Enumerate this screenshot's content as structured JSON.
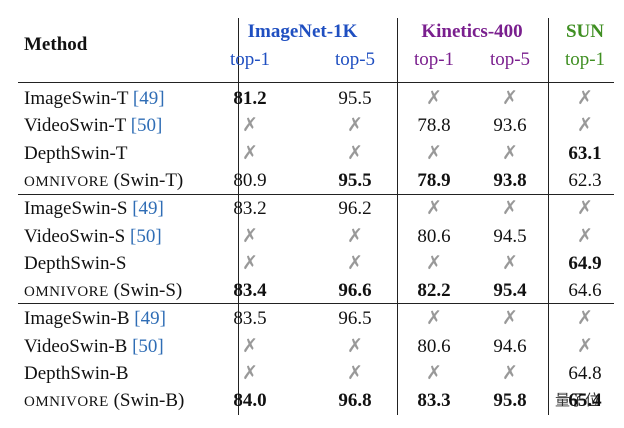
{
  "header": {
    "method": "Method",
    "groups": [
      {
        "name": "ImageNet-1K",
        "color": "#1f4fc1",
        "subcolumns": [
          "top-1",
          "top-5"
        ]
      },
      {
        "name": "Kinetics-400",
        "color": "#7a1f8e",
        "subcolumns": [
          "top-1",
          "top-5"
        ]
      },
      {
        "name": "SUN",
        "color": "#3f8f22",
        "subcolumns": [
          "top-1"
        ]
      }
    ]
  },
  "table": {
    "rows": [
      {
        "method": "ImageSwin-T",
        "ref": "[49]",
        "cells": [
          "81.2",
          "95.5",
          "✗",
          "✗",
          "✗"
        ],
        "bold": [
          true,
          false,
          false,
          false,
          false
        ]
      },
      {
        "method": "VideoSwin-T",
        "ref": "[50]",
        "cells": [
          "✗",
          "✗",
          "78.8",
          "93.6",
          "✗"
        ],
        "bold": [
          false,
          false,
          false,
          false,
          false
        ]
      },
      {
        "method": "DepthSwin-T",
        "cells": [
          "✗",
          "✗",
          "✗",
          "✗",
          "63.1"
        ],
        "bold": [
          false,
          false,
          false,
          false,
          true
        ]
      },
      {
        "method": "OMNIVORE",
        "suffix": "(Swin-T)",
        "cells": [
          "80.9",
          "95.5",
          "78.9",
          "93.8",
          "62.3"
        ],
        "bold": [
          false,
          true,
          true,
          true,
          false
        ]
      },
      {
        "method": "ImageSwin-S",
        "ref": "[49]",
        "cells": [
          "83.2",
          "96.2",
          "✗",
          "✗",
          "✗"
        ],
        "bold": [
          false,
          false,
          false,
          false,
          false
        ]
      },
      {
        "method": "VideoSwin-S",
        "ref": "[50]",
        "cells": [
          "✗",
          "✗",
          "80.6",
          "94.5",
          "✗"
        ],
        "bold": [
          false,
          false,
          false,
          false,
          false
        ]
      },
      {
        "method": "DepthSwin-S",
        "cells": [
          "✗",
          "✗",
          "✗",
          "✗",
          "64.9"
        ],
        "bold": [
          false,
          false,
          false,
          false,
          true
        ]
      },
      {
        "method": "OMNIVORE",
        "suffix": "(Swin-S)",
        "cells": [
          "83.4",
          "96.6",
          "82.2",
          "95.4",
          "64.6"
        ],
        "bold": [
          true,
          true,
          true,
          true,
          false
        ]
      },
      {
        "method": "ImageSwin-B",
        "ref": "[49]",
        "cells": [
          "83.5",
          "96.5",
          "✗",
          "✗",
          "✗"
        ],
        "bold": [
          false,
          false,
          false,
          false,
          false
        ]
      },
      {
        "method": "VideoSwin-B",
        "ref": "[50]",
        "cells": [
          "✗",
          "✗",
          "80.6",
          "94.6",
          "✗"
        ],
        "bold": [
          false,
          false,
          false,
          false,
          false
        ]
      },
      {
        "method": "DepthSwin-B",
        "cells": [
          "✗",
          "✗",
          "✗",
          "✗",
          "64.8"
        ],
        "bold": [
          false,
          false,
          false,
          false,
          false
        ]
      },
      {
        "method": "OMNIVORE",
        "suffix": "(Swin-B)",
        "cells": [
          "84.0",
          "96.8",
          "83.3",
          "95.8",
          "65.4"
        ],
        "bold": [
          true,
          true,
          true,
          true,
          true
        ]
      }
    ]
  },
  "watermark": "量子位"
}
